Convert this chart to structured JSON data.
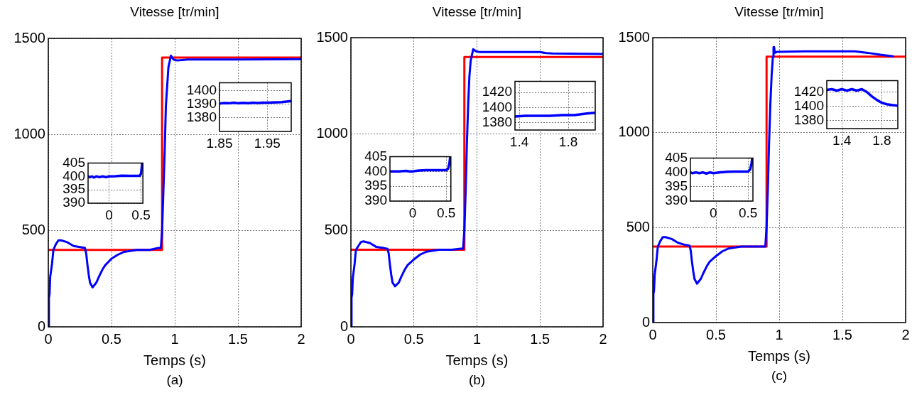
{
  "chart_data": [
    {
      "type": "line",
      "title": "Vitesse [tr/min]",
      "xlabel": "Temps (s)",
      "annotations": [
        "(a)"
      ],
      "xlim": [
        0,
        2
      ],
      "ylim": [
        0,
        1500
      ],
      "xticks": [
        0,
        0.5,
        1,
        1.5,
        2
      ],
      "yticks": [
        0,
        500,
        1000,
        1500
      ],
      "grid": true,
      "marker": "none",
      "line_style": "solid",
      "series": [
        {
          "color": "#0000ff",
          "x": [
            0,
            0.005,
            0.01,
            0.015,
            0.03,
            0.04,
            0.06,
            0.08,
            0.1,
            0.15,
            0.2,
            0.25,
            0.29,
            0.3,
            0.31,
            0.32,
            0.33,
            0.35,
            0.38,
            0.4,
            0.43,
            0.45,
            0.5,
            0.55,
            0.6,
            0.7,
            0.8,
            0.87,
            0.89,
            0.9,
            0.91,
            0.92,
            0.93,
            0.94,
            0.95,
            0.97,
            0.99,
            1.02,
            1.1,
            1.5,
            2
          ],
          "values": [
            0,
            150,
            170,
            260,
            330,
            400,
            430,
            450,
            450,
            440,
            420,
            415,
            410,
            380,
            320,
            270,
            230,
            205,
            230,
            260,
            300,
            320,
            355,
            375,
            390,
            400,
            400,
            410,
            410,
            500,
            700,
            900,
            1150,
            1250,
            1350,
            1410,
            1390,
            1385,
            1390,
            1390,
            1392
          ]
        },
        {
          "color": "#ff0000",
          "x": [
            0,
            0.9,
            0.9,
            2
          ],
          "values": [
            400,
            400,
            1400,
            1400
          ]
        }
      ]
    },
    {
      "type": "line",
      "xlim": [
        1.85,
        2.0
      ],
      "ylim": [
        1370,
        1406
      ],
      "xticks": [
        1.85,
        1.95
      ],
      "yticks": [
        1380,
        1390,
        1400
      ],
      "grid": true,
      "marker": "none",
      "line_style": "solid",
      "series": [
        {
          "color": "#0000ff",
          "x": [
            1.85,
            1.86,
            1.87,
            1.88,
            1.89,
            1.9,
            1.91,
            1.92,
            1.93,
            1.94,
            1.95,
            1.96,
            1.97,
            1.98,
            1.99,
            2.0
          ],
          "values": [
            1390.6,
            1391,
            1390.8,
            1391.2,
            1390.8,
            1391.1,
            1390.9,
            1391.3,
            1391,
            1391.3,
            1391.2,
            1391.4,
            1391.5,
            1391.6,
            1392,
            1392.4
          ]
        }
      ]
    },
    {
      "type": "line",
      "xlim": [
        -0.33,
        0.53
      ],
      "ylim": [
        390,
        405
      ],
      "xticks": [
        0,
        0.5
      ],
      "yticks": [
        390,
        395,
        400,
        405
      ],
      "grid": true,
      "marker": "none",
      "line_style": "solid",
      "series": [
        {
          "color": "#0000ff",
          "x": [
            -0.33,
            -0.3,
            -0.27,
            -0.24,
            -0.2,
            -0.15,
            -0.1,
            -0.05,
            0,
            0.1,
            0.2,
            0.3,
            0.4,
            0.48,
            0.5,
            0.51,
            0.52
          ],
          "values": [
            400,
            399.7,
            400,
            399.6,
            400,
            399.7,
            400,
            399.7,
            400,
            400.1,
            400.3,
            400.2,
            400.2,
            400.2,
            401,
            403,
            405
          ]
        }
      ]
    },
    {
      "type": "line",
      "title": "Vitesse [tr/min]",
      "xlabel": "Temps (s)",
      "annotations": [
        "(b)"
      ],
      "xlim": [
        0,
        2
      ],
      "ylim": [
        0,
        1500
      ],
      "xticks": [
        0,
        0.5,
        1,
        1.5,
        2
      ],
      "yticks": [
        0,
        500,
        1000,
        1500
      ],
      "grid": true,
      "marker": "none",
      "line_style": "solid",
      "series": [
        {
          "color": "#0000ff",
          "x": [
            0,
            0.005,
            0.01,
            0.015,
            0.03,
            0.04,
            0.06,
            0.08,
            0.1,
            0.15,
            0.2,
            0.25,
            0.29,
            0.3,
            0.31,
            0.32,
            0.33,
            0.35,
            0.38,
            0.4,
            0.43,
            0.45,
            0.5,
            0.55,
            0.6,
            0.7,
            0.8,
            0.87,
            0.89,
            0.9,
            0.91,
            0.92,
            0.93,
            0.94,
            0.95,
            0.97,
            0.99,
            1.02,
            1.5,
            1.55,
            1.6,
            2
          ],
          "values": [
            0,
            150,
            170,
            250,
            330,
            400,
            420,
            440,
            443,
            435,
            415,
            410,
            405,
            380,
            320,
            270,
            230,
            210,
            230,
            260,
            300,
            320,
            350,
            375,
            390,
            400,
            400,
            405,
            405,
            500,
            700,
            950,
            1150,
            1300,
            1380,
            1440,
            1430,
            1425,
            1425,
            1420,
            1418,
            1415
          ]
        },
        {
          "color": "#ff0000",
          "x": [
            0,
            0.9,
            0.9,
            2
          ],
          "values": [
            400,
            400,
            1400,
            1400
          ]
        }
      ]
    },
    {
      "type": "line",
      "xlim": [
        1.365,
        2.02
      ],
      "ylim": [
        1370,
        1435
      ],
      "xticks": [
        1.4,
        1.8
      ],
      "yticks": [
        1380,
        1400,
        1420
      ],
      "grid": true,
      "marker": "none",
      "line_style": "solid",
      "series": [
        {
          "color": "#0000ff",
          "x": [
            1.365,
            1.45,
            1.55,
            1.65,
            1.75,
            1.85,
            1.95,
            2.02
          ],
          "values": [
            1388,
            1389,
            1389,
            1389,
            1390,
            1390,
            1392,
            1393
          ]
        }
      ]
    },
    {
      "type": "line",
      "xlim": [
        -0.34,
        0.57
      ],
      "ylim": [
        390,
        405
      ],
      "xticks": [
        0,
        0.5
      ],
      "yticks": [
        390,
        395,
        400,
        405
      ],
      "grid": true,
      "marker": "none",
      "line_style": "solid",
      "series": [
        {
          "color": "#0000ff",
          "x": [
            -0.34,
            -0.2,
            -0.1,
            -0.05,
            0,
            0.05,
            0.1,
            0.2,
            0.3,
            0.4,
            0.5,
            0.53,
            0.55,
            0.56
          ],
          "values": [
            400,
            400,
            400.2,
            400,
            400,
            400.2,
            400.3,
            400.4,
            400.4,
            400.4,
            400.4,
            401,
            403,
            405
          ]
        }
      ]
    },
    {
      "type": "line",
      "title": "Vitesse [tr/min]",
      "xlabel": "Temps (s)",
      "annotations": [
        "(c)"
      ],
      "xlim": [
        0,
        2
      ],
      "ylim": [
        0,
        1500
      ],
      "xticks": [
        0,
        0.5,
        1,
        1.5,
        2
      ],
      "yticks": [
        0,
        500,
        1000,
        1500
      ],
      "grid": true,
      "marker": "none",
      "line_style": "solid",
      "series": [
        {
          "color": "#0000ff",
          "x": [
            0,
            0.005,
            0.01,
            0.015,
            0.03,
            0.04,
            0.06,
            0.08,
            0.1,
            0.15,
            0.2,
            0.25,
            0.29,
            0.3,
            0.31,
            0.32,
            0.33,
            0.35,
            0.38,
            0.4,
            0.43,
            0.45,
            0.5,
            0.55,
            0.6,
            0.7,
            0.8,
            0.87,
            0.89,
            0.9,
            0.91,
            0.92,
            0.93,
            0.94,
            0.95,
            0.955,
            0.96,
            0.965,
            0.98,
            1.2,
            1.6,
            1.7,
            1.8,
            1.9
          ],
          "values": [
            0,
            150,
            170,
            250,
            330,
            400,
            430,
            450,
            450,
            440,
            420,
            410,
            405,
            380,
            320,
            270,
            230,
            205,
            230,
            260,
            300,
            320,
            350,
            375,
            390,
            400,
            400,
            400,
            400,
            500,
            700,
            950,
            1150,
            1300,
            1400,
            1450,
            1450,
            1420,
            1425,
            1428,
            1428,
            1420,
            1410,
            1402
          ]
        },
        {
          "color": "#ff0000",
          "x": [
            0,
            0.9,
            0.9,
            2
          ],
          "values": [
            400,
            400,
            1400,
            1400
          ]
        }
      ]
    },
    {
      "type": "line",
      "xlim": [
        1.25,
        1.96
      ],
      "ylim": [
        1369,
        1436
      ],
      "xticks": [
        1.4,
        1.8
      ],
      "yticks": [
        1380,
        1400,
        1420
      ],
      "grid": true,
      "marker": "none",
      "line_style": "solid",
      "series": [
        {
          "color": "#0000ff",
          "x": [
            1.25,
            1.3,
            1.35,
            1.4,
            1.45,
            1.5,
            1.55,
            1.6,
            1.65,
            1.7,
            1.75,
            1.8,
            1.85,
            1.9,
            1.96
          ],
          "values": [
            1423,
            1424,
            1422,
            1424,
            1422,
            1424,
            1422,
            1424,
            1420,
            1414,
            1409,
            1405,
            1403,
            1402,
            1401
          ]
        }
      ]
    },
    {
      "type": "line",
      "xlim": [
        -0.33,
        0.57
      ],
      "ylim": [
        390,
        405
      ],
      "xticks": [
        0,
        0.5
      ],
      "yticks": [
        390,
        395,
        400,
        405
      ],
      "grid": true,
      "marker": "none",
      "line_style": "solid",
      "series": [
        {
          "color": "#0000ff",
          "x": [
            -0.33,
            -0.3,
            -0.25,
            -0.2,
            -0.15,
            -0.1,
            -0.05,
            0,
            0.1,
            0.2,
            0.3,
            0.4,
            0.5,
            0.53,
            0.55,
            0.56
          ],
          "values": [
            400,
            399.7,
            400,
            399.7,
            400,
            399.6,
            400,
            399.7,
            400,
            400.2,
            400.3,
            400.3,
            400.3,
            401,
            403,
            405
          ]
        }
      ]
    }
  ]
}
